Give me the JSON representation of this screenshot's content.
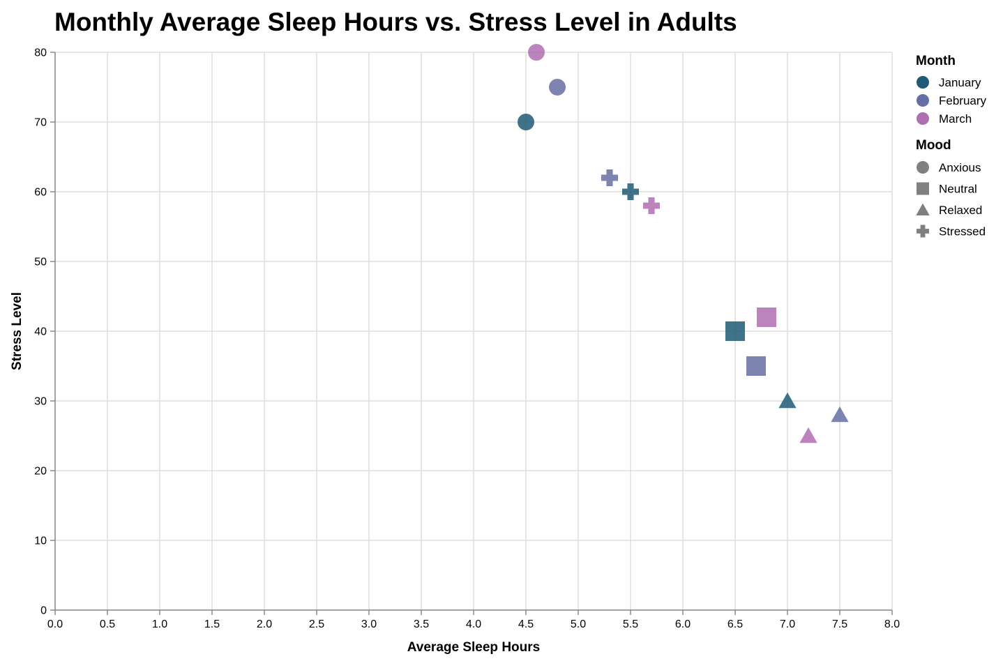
{
  "chart_data": {
    "type": "scatter",
    "title": "Monthly Average Sleep Hours vs. Stress Level in Adults",
    "xlabel": "Average Sleep Hours",
    "ylabel": "Stress Level",
    "xlim": [
      0,
      8
    ],
    "ylim": [
      0,
      80
    ],
    "x_ticks": [
      "0.0",
      "0.5",
      "1.0",
      "1.5",
      "2.0",
      "2.5",
      "3.0",
      "3.5",
      "4.0",
      "4.5",
      "5.0",
      "5.5",
      "6.0",
      "6.5",
      "7.0",
      "7.5",
      "8.0"
    ],
    "y_ticks": [
      "0",
      "10",
      "20",
      "30",
      "40",
      "50",
      "60",
      "70",
      "80"
    ],
    "grid": true,
    "legend_position": "right",
    "color_legend": {
      "title": "Month",
      "items": [
        {
          "label": "January",
          "color": "#1f5a76"
        },
        {
          "label": "February",
          "color": "#666fa1"
        },
        {
          "label": "March",
          "color": "#b06fb1"
        }
      ]
    },
    "shape_legend": {
      "title": "Mood",
      "items": [
        {
          "label": "Anxious",
          "shape": "circle"
        },
        {
          "label": "Neutral",
          "shape": "square"
        },
        {
          "label": "Relaxed",
          "shape": "triangle"
        },
        {
          "label": "Stressed",
          "shape": "cross"
        }
      ],
      "swatch_color": "#808080"
    },
    "points": [
      {
        "month": "January",
        "mood": "Anxious",
        "x": 4.5,
        "y": 70
      },
      {
        "month": "January",
        "mood": "Stressed",
        "x": 5.5,
        "y": 60
      },
      {
        "month": "January",
        "mood": "Neutral",
        "x": 6.5,
        "y": 40
      },
      {
        "month": "January",
        "mood": "Relaxed",
        "x": 7.0,
        "y": 30
      },
      {
        "month": "February",
        "mood": "Anxious",
        "x": 4.8,
        "y": 75
      },
      {
        "month": "February",
        "mood": "Stressed",
        "x": 5.3,
        "y": 62
      },
      {
        "month": "February",
        "mood": "Neutral",
        "x": 6.7,
        "y": 35
      },
      {
        "month": "February",
        "mood": "Relaxed",
        "x": 7.5,
        "y": 28
      },
      {
        "month": "March",
        "mood": "Anxious",
        "x": 4.6,
        "y": 80
      },
      {
        "month": "March",
        "mood": "Stressed",
        "x": 5.7,
        "y": 58
      },
      {
        "month": "March",
        "mood": "Neutral",
        "x": 6.8,
        "y": 42
      },
      {
        "month": "March",
        "mood": "Relaxed",
        "x": 7.2,
        "y": 25
      }
    ]
  }
}
